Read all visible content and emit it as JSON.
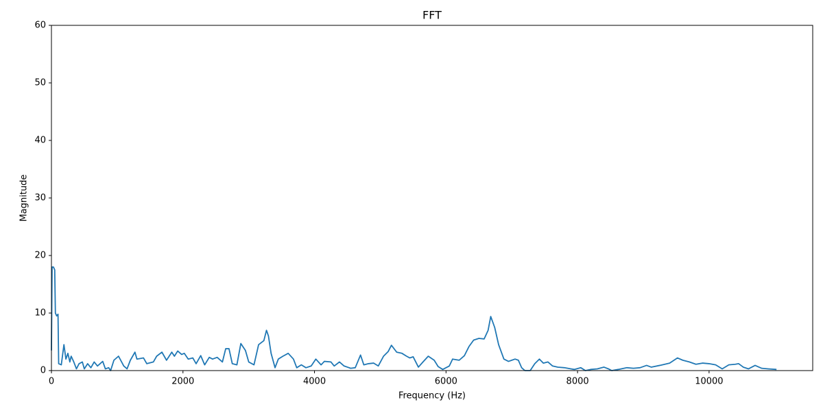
{
  "chart_data": {
    "type": "line",
    "title": "FFT",
    "x_label": "Frequency (Hz)",
    "y_label": "Magnitude",
    "xlim": [
      0,
      11576
    ],
    "ylim": [
      0,
      60
    ],
    "xticks": [
      0,
      2000,
      4000,
      6000,
      8000,
      10000
    ],
    "yticks": [
      0,
      10,
      20,
      30,
      40,
      50,
      60
    ],
    "x": [
      0,
      10,
      30,
      50,
      60,
      80,
      100,
      110,
      150,
      190,
      220,
      250,
      280,
      300,
      340,
      380,
      420,
      470,
      500,
      550,
      600,
      650,
      700,
      780,
      820,
      870,
      900,
      950,
      1020,
      1100,
      1150,
      1200,
      1270,
      1300,
      1400,
      1450,
      1550,
      1600,
      1680,
      1750,
      1830,
      1870,
      1920,
      1980,
      2020,
      2080,
      2150,
      2200,
      2270,
      2330,
      2400,
      2450,
      2520,
      2600,
      2650,
      2700,
      2750,
      2820,
      2880,
      2950,
      3000,
      3080,
      3150,
      3230,
      3270,
      3300,
      3340,
      3400,
      3450,
      3520,
      3600,
      3680,
      3730,
      3800,
      3870,
      3950,
      4020,
      4100,
      4150,
      4250,
      4300,
      4380,
      4450,
      4550,
      4620,
      4700,
      4750,
      4820,
      4900,
      4970,
      5050,
      5120,
      5170,
      5250,
      5330,
      5400,
      5450,
      5500,
      5580,
      5650,
      5730,
      5820,
      5880,
      5950,
      6050,
      6100,
      6200,
      6280,
      6350,
      6420,
      6500,
      6580,
      6640,
      6680,
      6740,
      6800,
      6880,
      6950,
      7000,
      7050,
      7100,
      7150,
      7200,
      7280,
      7350,
      7420,
      7480,
      7550,
      7620,
      7700,
      7800,
      7900,
      7950,
      8050,
      8120,
      8200,
      8300,
      8400,
      8470,
      8520,
      8620,
      8750,
      8850,
      8950,
      9050,
      9120,
      9250,
      9400,
      9520,
      9600,
      9700,
      9800,
      9900,
      10000,
      10100,
      10200,
      10300,
      10400,
      10450,
      10520,
      10600,
      10700,
      10800,
      10900,
      11025
    ],
    "series": [
      {
        "name": "FFT",
        "color": "#1f77b4",
        "values": [
          3.5,
          18,
          18,
          17.5,
          10,
          9.5,
          9.8,
          1.2,
          1,
          4.5,
          2,
          3,
          1.5,
          2.5,
          1.5,
          0.3,
          1.2,
          1.5,
          0.3,
          1.2,
          0.5,
          1.5,
          0.8,
          1.6,
          0.3,
          0.5,
          0,
          1.8,
          2.5,
          0.8,
          0.3,
          1.8,
          3.2,
          2,
          2.2,
          1.2,
          1.5,
          2.5,
          3.2,
          1.8,
          3.2,
          2.5,
          3.4,
          2.8,
          3,
          2,
          2.2,
          1.2,
          2.6,
          1,
          2.3,
          2,
          2.3,
          1.5,
          3.8,
          3.8,
          1.2,
          1,
          4.7,
          3.5,
          1.5,
          1,
          4.5,
          5.2,
          7,
          6,
          3,
          0.5,
          2,
          2.5,
          3,
          2,
          0.5,
          1,
          0.5,
          0.8,
          2,
          1,
          1.6,
          1.5,
          0.8,
          1.5,
          0.8,
          0.4,
          0.5,
          2.7,
          1,
          1.2,
          1.3,
          0.8,
          2.5,
          3.3,
          4.4,
          3.2,
          3,
          2.5,
          2.2,
          2.4,
          0.6,
          1.5,
          2.5,
          1.8,
          0.7,
          0.2,
          0.8,
          2,
          1.8,
          2.6,
          4.2,
          5.3,
          5.6,
          5.5,
          7,
          9.4,
          7.5,
          4.5,
          2,
          1.6,
          1.8,
          2,
          1.8,
          0.5,
          0,
          0,
          1.2,
          2,
          1.3,
          1.5,
          0.8,
          0.6,
          0.5,
          0.3,
          0.2,
          0.5,
          0,
          0.2,
          0.3,
          0.6,
          0.3,
          0,
          0.2,
          0.5,
          0.4,
          0.5,
          0.9,
          0.6,
          0.9,
          1.3,
          2.2,
          1.8,
          1.5,
          1.1,
          1.3,
          1.2,
          1,
          0.3,
          1,
          1.1,
          1.2,
          0.6,
          0.3,
          0.9,
          0.4,
          0.3,
          0.2
        ]
      }
    ]
  }
}
